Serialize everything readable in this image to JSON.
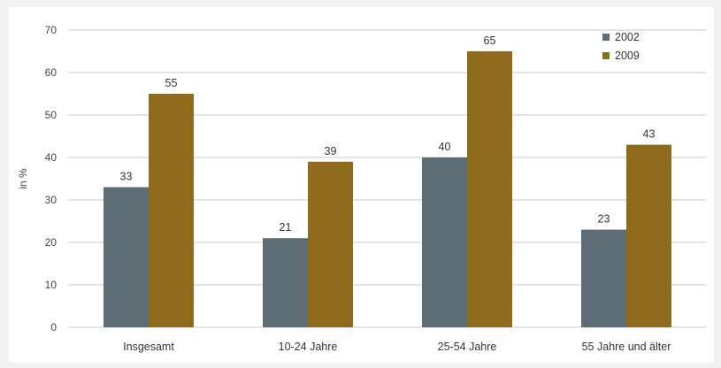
{
  "chart_data": {
    "type": "bar",
    "title": "",
    "xlabel": "",
    "ylabel": "in %",
    "ylim": [
      0,
      70
    ],
    "yticks": [
      0,
      10,
      20,
      30,
      40,
      50,
      60,
      70
    ],
    "grid": true,
    "legend_position": "top-right",
    "categories": [
      "Insgesamt",
      "10-24 Jahre",
      "25-54 Jahre",
      "55 Jahre und älter"
    ],
    "series": [
      {
        "name": "2002",
        "color": "#5e6c76",
        "values": [
          33,
          21,
          40,
          23
        ]
      },
      {
        "name": "2009",
        "color": "#8f6b1e",
        "values": [
          55,
          39,
          65,
          43
        ]
      }
    ]
  }
}
